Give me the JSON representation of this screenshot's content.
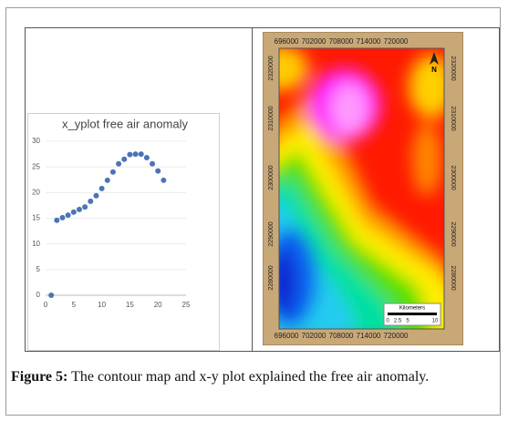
{
  "chart_data": {
    "type": "scatter",
    "title": "x_yplot free air anomaly",
    "x": [
      1,
      2,
      3,
      4,
      5,
      6,
      7,
      8,
      9,
      10,
      11,
      12,
      13,
      14,
      15,
      16,
      17,
      18,
      19,
      20,
      21
    ],
    "series": [
      {
        "color": "#4a74b5",
        "values": [
          0,
          14.6,
          15.1,
          15.6,
          16.2,
          16.7,
          17.2,
          18.3,
          19.4,
          20.8,
          22.4,
          24.0,
          25.6,
          26.5,
          27.4,
          27.5,
          27.5,
          26.8,
          25.6,
          24.2,
          22.4
        ]
      }
    ],
    "xlim": [
      0,
      25
    ],
    "xticks": [
      0,
      5,
      10,
      15,
      20,
      25
    ],
    "ylim": [
      0,
      30
    ],
    "yticks": [
      0,
      5,
      10,
      15,
      20,
      25,
      30
    ],
    "grid": true
  },
  "map": {
    "top_labels": [
      "696000",
      "702000",
      "708000",
      "714000",
      "720000"
    ],
    "bottom_labels": [
      "696000",
      "702000",
      "708000",
      "714000",
      "720000"
    ],
    "left_labels": [
      "2320000",
      "2310000",
      "2300000",
      "2290000",
      "2280000"
    ],
    "right_labels": [
      "2320000",
      "2310000",
      "2300000",
      "2290000",
      "2280000"
    ],
    "north": "N",
    "scale_title": "Kilometers",
    "scale_labels": [
      "0",
      "2.5",
      "5",
      "10"
    ]
  },
  "caption": {
    "label": "Figure 5:",
    "text": "The contour map and x-y plot explained the free air anomaly."
  }
}
